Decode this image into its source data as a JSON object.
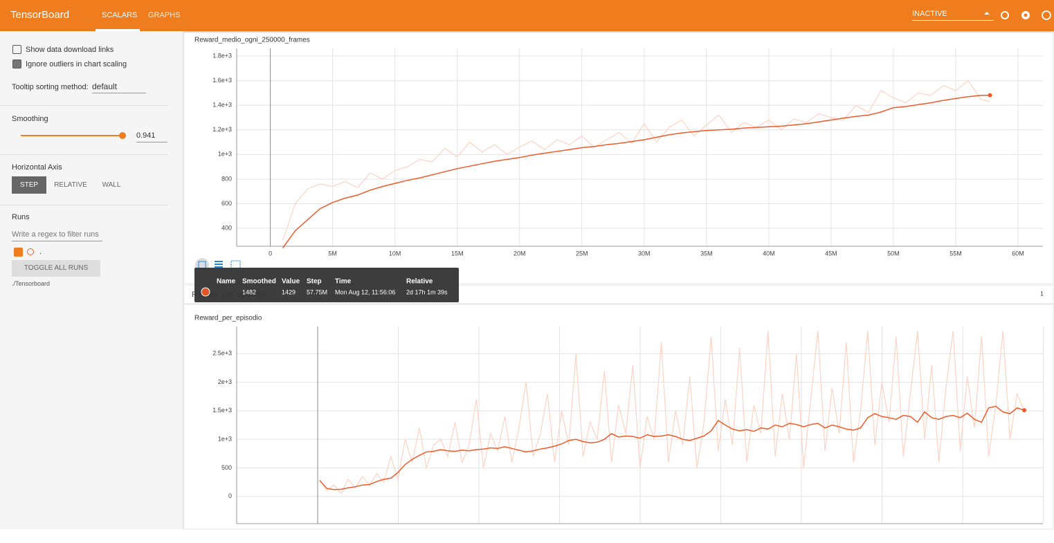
{
  "header": {
    "title": "TensorBoard",
    "tabs": [
      "SCALARS",
      "GRAPHS"
    ],
    "status": "INACTIVE"
  },
  "sidebar": {
    "show_download": "Show data download links",
    "ignore_outliers": "Ignore outliers in chart scaling",
    "tooltip_label": "Tooltip sorting method:",
    "tooltip_value": "default",
    "smoothing_label": "Smoothing",
    "smoothing_value": 0.941,
    "horizontal_axis": "Horizontal Axis",
    "axis_options": [
      "STEP",
      "RELATIVE",
      "WALL"
    ],
    "runs": "Runs",
    "filter_placeholder": "Write a regex to filter runs",
    "run_name": ".",
    "toggle": "TOGGLE ALL RUNS",
    "logdir": "./Tensorboard"
  },
  "tooltip": {
    "headers": [
      "Name",
      "Smoothed",
      "Value",
      "Step",
      "Time",
      "Relative"
    ],
    "step": "57.75M",
    "time": "Mon Aug 12, 11:56:06",
    "relative": "2d 17h 1m 39s"
  },
  "group": {
    "title": "Reward_per_episodio",
    "count": "1"
  },
  "chart_data": [
    {
      "type": "line",
      "title": "Reward_medio_ogni_250000_frames",
      "x": [
        1000000,
        2000000,
        3000000,
        4000000,
        5000000,
        6000000,
        7000000,
        8000000,
        9000000,
        10000000,
        11000000,
        12000000,
        13000000,
        14000000,
        15000000,
        16000000,
        17000000,
        18000000,
        19000000,
        20000000,
        21000000,
        22000000,
        23000000,
        24000000,
        25000000,
        26000000,
        27000000,
        28000000,
        29000000,
        30000000,
        31000000,
        32000000,
        33000000,
        34000000,
        35000000,
        36000000,
        37000000,
        38000000,
        39000000,
        40000000,
        41000000,
        42000000,
        43000000,
        44000000,
        45000000,
        46000000,
        47000000,
        48000000,
        49000000,
        50000000,
        51000000,
        52000000,
        53000000,
        54000000,
        55000000,
        56000000,
        57000000,
        57750000
      ],
      "series": [
        {
          "color": "#fcd3c3",
          "values": [
            300,
            600,
            720,
            760,
            740,
            780,
            730,
            850,
            800,
            870,
            900,
            960,
            940,
            1050,
            980,
            1100,
            1020,
            1080,
            1000,
            1060,
            1110,
            1040,
            1120,
            1080,
            1150,
            1060,
            1120,
            1180,
            1090,
            1250,
            1100,
            1220,
            1280,
            1150,
            1240,
            1320,
            1180,
            1260,
            1220,
            1280,
            1200,
            1290,
            1260,
            1330,
            1300,
            1280,
            1400,
            1340,
            1520,
            1460,
            1420,
            1500,
            1480,
            1560,
            1520,
            1600,
            1450,
            1429
          ]
        },
        {
          "color": "#f05a28",
          "values": [
            240,
            380,
            470,
            560,
            610,
            645,
            670,
            710,
            740,
            765,
            790,
            810,
            835,
            860,
            885,
            905,
            925,
            945,
            960,
            975,
            995,
            1010,
            1025,
            1040,
            1055,
            1065,
            1080,
            1090,
            1105,
            1120,
            1140,
            1160,
            1175,
            1185,
            1195,
            1200,
            1205,
            1215,
            1220,
            1225,
            1230,
            1240,
            1250,
            1265,
            1280,
            1295,
            1310,
            1320,
            1345,
            1380,
            1390,
            1405,
            1420,
            1440,
            1455,
            1470,
            1480,
            1482
          ]
        }
      ],
      "xlim": [
        -2700000,
        62000000
      ],
      "xticks": [
        0,
        {
          "value": 5000000,
          "label": "5M"
        },
        {
          "value": 10000000,
          "label": "10M"
        },
        {
          "value": 15000000,
          "label": "15M"
        },
        {
          "value": 20000000,
          "label": "20M"
        },
        {
          "value": 25000000,
          "label": "25M"
        },
        {
          "value": 30000000,
          "label": "30M"
        },
        {
          "value": 35000000,
          "label": "35M"
        },
        {
          "value": 40000000,
          "label": "40M"
        },
        {
          "value": 45000000,
          "label": "45M"
        },
        {
          "value": 50000000,
          "label": "50M"
        },
        {
          "value": 55000000,
          "label": "55M"
        },
        {
          "value": 60000000,
          "label": "60M"
        }
      ],
      "ylim": [
        254,
        1862
      ],
      "yticks": [
        400,
        600,
        800,
        {
          "value": 1000,
          "label": "1e+3"
        },
        {
          "value": 1200,
          "label": "1.2e+3"
        },
        {
          "value": 1400,
          "label": "1.4e+3"
        },
        {
          "value": 1600,
          "label": "1.6e+3"
        },
        {
          "value": 1800,
          "label": "1.8e+3"
        }
      ],
      "grid": true
    },
    {
      "type": "line",
      "title": "Reward_per_episodio",
      "series": [
        {
          "color": "#fcd3c3",
          "values": [
            300,
            100,
            200,
            50,
            300,
            150,
            350,
            200,
            400,
            250,
            700,
            300,
            1000,
            600,
            1200,
            500,
            900,
            1000,
            700,
            1300,
            600,
            900,
            1700,
            500,
            1100,
            800,
            1400,
            600,
            1200,
            2000,
            700,
            1100,
            1800,
            600,
            1500,
            900,
            2500,
            700,
            1300,
            1000,
            2200,
            600,
            1600,
            1100,
            2300,
            500,
            1400,
            1000,
            2700,
            600,
            1500,
            900,
            2100,
            500,
            1300,
            2800,
            800,
            1700,
            900,
            2600,
            600,
            1600,
            1100,
            2900,
            700,
            1800,
            1000,
            2500,
            500,
            1700,
            2900,
            800,
            1900,
            1100,
            2700,
            600,
            1500,
            2900,
            900,
            2000,
            1300,
            2800,
            700,
            1800,
            2900,
            1000,
            2300,
            600,
            1900,
            2900,
            800,
            2100,
            1200,
            2800,
            700,
            1600,
            2900,
            1000,
            1800,
            1500
          ]
        },
        {
          "color": "#f05a28",
          "values": [
            280,
            140,
            120,
            125,
            150,
            170,
            200,
            210,
            260,
            300,
            320,
            420,
            560,
            650,
            720,
            780,
            790,
            820,
            800,
            790,
            810,
            800,
            820,
            830,
            850,
            840,
            870,
            840,
            810,
            780,
            800,
            830,
            850,
            880,
            920,
            980,
            1000,
            960,
            940,
            950,
            1000,
            1100,
            1040,
            1060,
            1050,
            1020,
            1080,
            1050,
            1060,
            1080,
            1050,
            1000,
            980,
            1020,
            1060,
            1150,
            1330,
            1250,
            1180,
            1150,
            1170,
            1140,
            1200,
            1180,
            1250,
            1220,
            1280,
            1260,
            1220,
            1260,
            1280,
            1200,
            1250,
            1220,
            1180,
            1160,
            1200,
            1380,
            1450,
            1400,
            1380,
            1350,
            1420,
            1400,
            1300,
            1480,
            1380,
            1350,
            1400,
            1420,
            1380,
            1460,
            1350,
            1300,
            1550,
            1580,
            1480,
            1450,
            1550,
            1510
          ]
        }
      ],
      "ylim": [
        -476,
        2976
      ],
      "yticks": [
        0,
        500,
        {
          "value": 1000,
          "label": "1e+3"
        },
        {
          "value": 1500,
          "label": "1.5e+3"
        },
        {
          "value": 2000,
          "label": "2e+3"
        },
        {
          "value": 2500,
          "label": "2.5e+3"
        }
      ],
      "grid": true
    }
  ]
}
